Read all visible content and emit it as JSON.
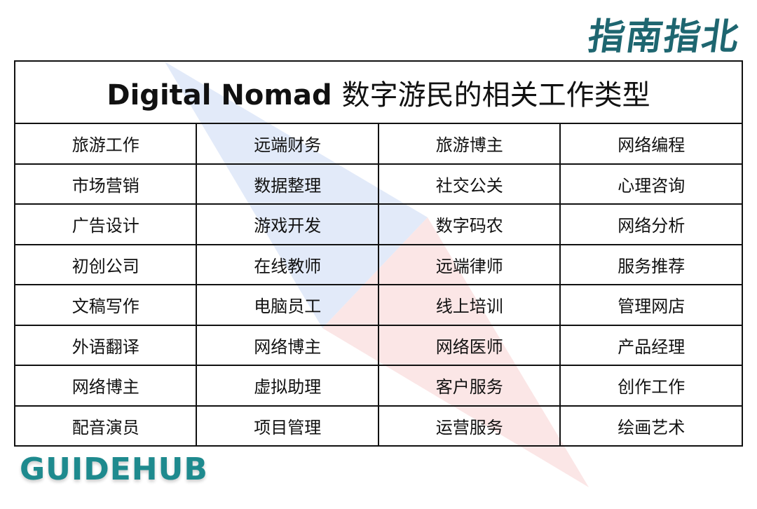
{
  "logo_cn": "指南指北",
  "title_en": "Digital Nomad",
  "title_cn": "数字游民的相关工作类型",
  "rows": [
    [
      "旅游工作",
      "远端财务",
      "旅游博主",
      "网络编程"
    ],
    [
      "市场营销",
      "数据整理",
      "社交公关",
      "心理咨询"
    ],
    [
      "广告设计",
      "游戏开发",
      "数字码农",
      "网络分析"
    ],
    [
      "初创公司",
      "在线教师",
      "远端律师",
      "服务推荐"
    ],
    [
      "文稿写作",
      "电脑员工",
      "线上培训",
      "管理网店"
    ],
    [
      "外语翻译",
      "网络博主",
      "网络医师",
      "产品经理"
    ],
    [
      "网络博主",
      "虚拟助理",
      "客户服务",
      "创作工作"
    ],
    [
      "配音演员",
      "项目管理",
      "运营服务",
      "绘画艺术"
    ]
  ],
  "brand": "GUIDEHUB",
  "colors": {
    "brand": "#1e8a8e",
    "logo": "#1e6670"
  }
}
